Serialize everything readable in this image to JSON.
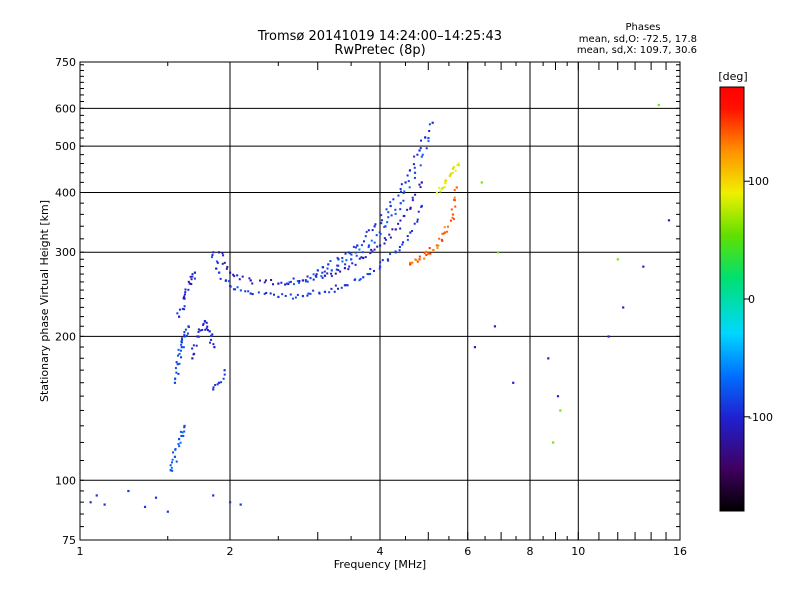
{
  "chart_data": {
    "type": "scatter",
    "title": "Tromsø 20141019 14:24:00–14:25:43",
    "subtitle": "RwPretec (8p)",
    "xlabel": "Frequency [MHz]",
    "ylabel": "Stationary phase Virtual Height [km]",
    "x_scale": "log",
    "y_scale": "log",
    "xlim": [
      1,
      16
    ],
    "ylim": [
      75,
      750
    ],
    "x_ticks": [
      1,
      2,
      4,
      6,
      8,
      10,
      16
    ],
    "y_ticks": [
      75,
      100,
      200,
      300,
      400,
      500,
      600,
      750
    ],
    "grid": true,
    "colorbar": {
      "label": "[deg]",
      "range": [
        -180,
        180
      ],
      "ticks": [
        100,
        0,
        -100
      ]
    },
    "stats": {
      "heading": "Phases",
      "line1": "mean, sd,O: -72.5, 17.8",
      "line2": "mean, sd,X: 109.7, 30.6"
    },
    "traces": [
      {
        "segment": "lower_cusp_a",
        "x": [
          1.85,
          1.9,
          2.0,
          2.2,
          2.5,
          2.8,
          3.1,
          3.4,
          3.7,
          4.0,
          4.3,
          4.6,
          4.85
        ],
        "y": [
          300,
          272,
          255,
          246,
          242,
          243,
          248,
          256,
          266,
          280,
          300,
          330,
          375
        ],
        "phase": -90
      },
      {
        "segment": "lower_cusp_b",
        "x": [
          1.9,
          2.0,
          2.2,
          2.5,
          2.8,
          3.1,
          3.4,
          3.7,
          4.0,
          4.3,
          4.6,
          4.85
        ],
        "y": [
          300,
          272,
          262,
          258,
          262,
          268,
          278,
          292,
          310,
          335,
          370,
          420
        ],
        "phase": -110
      },
      {
        "segment": "upper_cusp_a",
        "x": [
          2.6,
          2.9,
          3.2,
          3.5,
          3.8,
          4.1,
          4.4,
          4.7,
          5.0
        ],
        "y": [
          258,
          265,
          275,
          290,
          310,
          340,
          380,
          440,
          520
        ],
        "phase": -80
      },
      {
        "segment": "upper_cusp_b",
        "x": [
          3.0,
          3.3,
          3.6,
          3.9,
          4.2,
          4.5,
          4.8,
          5.1
        ],
        "y": [
          275,
          290,
          310,
          340,
          375,
          420,
          490,
          560
        ],
        "phase": -95
      },
      {
        "segment": "x_trace",
        "x": [
          4.6,
          4.8,
          5.0,
          5.2,
          5.4,
          5.6,
          5.7
        ],
        "y": [
          285,
          290,
          298,
          310,
          330,
          360,
          410
        ],
        "phase": 140
      },
      {
        "segment": "x_trace_upper",
        "x": [
          5.2,
          5.4,
          5.6,
          5.75
        ],
        "y": [
          400,
          420,
          440,
          460
        ],
        "phase": 90
      },
      {
        "segment": "e_layer_a",
        "x": [
          1.55,
          1.57,
          1.6,
          1.62,
          1.65
        ],
        "y": [
          160,
          175,
          190,
          200,
          210
        ],
        "phase": -85
      },
      {
        "segment": "e_layer_b",
        "x": [
          1.68,
          1.72,
          1.78,
          1.82,
          1.86
        ],
        "y": [
          180,
          200,
          215,
          205,
          190
        ],
        "phase": -100
      },
      {
        "segment": "e_layer_c",
        "x": [
          1.85,
          1.9,
          1.95
        ],
        "y": [
          155,
          160,
          170
        ],
        "phase": -90
      },
      {
        "segment": "e_layer_d",
        "x": [
          1.52,
          1.55,
          1.58,
          1.62
        ],
        "y": [
          105,
          112,
          122,
          130
        ],
        "phase": -80
      },
      {
        "segment": "rising_branch",
        "x": [
          1.58,
          1.62,
          1.66,
          1.7
        ],
        "y": [
          220,
          240,
          258,
          272
        ],
        "phase": -105
      },
      {
        "segment": "low_echoes",
        "x": [
          1.05,
          1.08,
          1.12,
          1.25,
          1.35,
          1.42,
          1.5,
          1.85,
          2.0,
          2.1
        ],
        "y": [
          90,
          93,
          89,
          95,
          88,
          92,
          86,
          93,
          90,
          89
        ],
        "phase": -90
      },
      {
        "segment": "high_f_scatter",
        "x": [
          6.2,
          6.8,
          7.4,
          8.7,
          9.1,
          11.5,
          12.3,
          13.5,
          15.2
        ],
        "y": [
          190,
          210,
          160,
          180,
          150,
          200,
          230,
          280,
          350
        ],
        "phase": -100
      },
      {
        "segment": "high_f_scatter_warm",
        "x": [
          6.4,
          6.9,
          8.9,
          9.2,
          12.0,
          14.5
        ],
        "y": [
          420,
          300,
          120,
          140,
          290,
          610
        ],
        "phase": 60
      }
    ]
  }
}
